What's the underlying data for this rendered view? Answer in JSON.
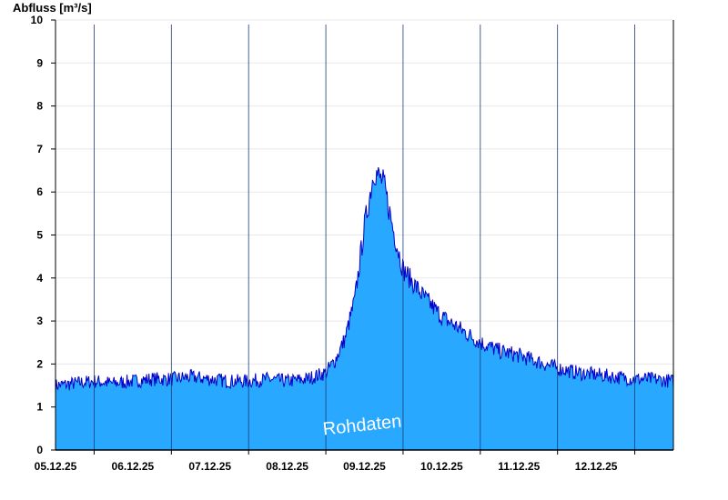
{
  "chart_data": {
    "type": "area",
    "ylabel": "Abfluss [m³/s]",
    "ylim": [
      0,
      10
    ],
    "yticks": [
      0,
      1,
      2,
      3,
      4,
      5,
      6,
      7,
      8,
      9,
      10
    ],
    "xlim": [
      "2025-12-04T12:00",
      "2025-12-12T12:00"
    ],
    "xtick_labels": [
      "05.12.25",
      "06.12.25",
      "07.12.25",
      "08.12.25",
      "09.12.25",
      "10.12.25",
      "11.12.25",
      "12.12.25"
    ],
    "day_dividers": [
      "2025-12-05",
      "2025-12-06",
      "2025-12-07",
      "2025-12-08",
      "2025-12-09",
      "2025-12-10",
      "2025-12-11",
      "2025-12-12"
    ],
    "grid": true,
    "watermark": "Rohdaten",
    "colors": {
      "fill": "#29a8ff",
      "line": "#0000c8",
      "grid": "#e8e8e8",
      "axis": "#000000"
    },
    "series": [
      {
        "x": [
          "2025-12-04T12:00",
          "2025-12-04T18:00",
          "2025-12-05T00:00",
          "2025-12-05T06:00",
          "2025-12-05T12:00",
          "2025-12-05T18:00",
          "2025-12-06T00:00",
          "2025-12-06T06:00",
          "2025-12-06T12:00",
          "2025-12-06T18:00",
          "2025-12-07T00:00",
          "2025-12-07T06:00",
          "2025-12-07T12:00",
          "2025-12-07T18:00",
          "2025-12-08T00:00",
          "2025-12-08T03:00",
          "2025-12-08T06:00",
          "2025-12-08T09:00",
          "2025-12-08T12:00",
          "2025-12-08T15:00",
          "2025-12-08T18:00",
          "2025-12-08T21:00",
          "2025-12-09T00:00",
          "2025-12-09T06:00",
          "2025-12-09T12:00",
          "2025-12-09T18:00",
          "2025-12-10T00:00",
          "2025-12-10T06:00",
          "2025-12-10T12:00",
          "2025-12-10T18:00",
          "2025-12-11T00:00",
          "2025-12-11T06:00",
          "2025-12-11T12:00",
          "2025-12-11T18:00",
          "2025-12-12T00:00",
          "2025-12-12T06:00",
          "2025-12-12T12:00"
        ],
        "values": [
          1.5,
          1.55,
          1.6,
          1.55,
          1.6,
          1.65,
          1.65,
          1.7,
          1.65,
          1.6,
          1.6,
          1.65,
          1.6,
          1.65,
          1.8,
          2.1,
          2.6,
          3.5,
          5.2,
          6.5,
          6.2,
          5.1,
          4.2,
          3.6,
          3.1,
          2.8,
          2.5,
          2.3,
          2.2,
          2.05,
          1.9,
          1.8,
          1.75,
          1.7,
          1.65,
          1.65,
          1.6
        ]
      }
    ]
  }
}
